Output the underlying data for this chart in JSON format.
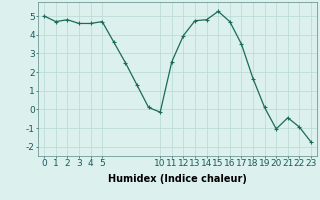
{
  "x": [
    0,
    1,
    2,
    3,
    4,
    5,
    6,
    7,
    8,
    9,
    10,
    11,
    12,
    13,
    14,
    15,
    16,
    17,
    18,
    19,
    20,
    21,
    22,
    23
  ],
  "y": [
    5.0,
    4.7,
    4.8,
    4.6,
    4.6,
    4.7,
    3.6,
    2.5,
    1.3,
    0.1,
    -0.15,
    2.55,
    3.95,
    4.75,
    4.8,
    5.25,
    4.7,
    3.5,
    1.65,
    0.1,
    -1.05,
    -0.45,
    -0.95,
    -1.75
  ],
  "line_color": "#1a6b5a",
  "marker": "+",
  "marker_size": 3,
  "marker_linewidth": 0.8,
  "linewidth": 0.9,
  "background_color": "#dcf0ee",
  "grid_color": "#b8d8d5",
  "xlabel": "Humidex (Indice chaleur)",
  "ylim": [
    -2.5,
    5.75
  ],
  "xlim": [
    -0.5,
    23.5
  ],
  "yticks": [
    -2,
    -1,
    0,
    1,
    2,
    3,
    4,
    5
  ],
  "xticks": [
    0,
    1,
    2,
    3,
    4,
    5,
    10,
    11,
    12,
    13,
    14,
    15,
    16,
    17,
    18,
    19,
    20,
    21,
    22,
    23
  ],
  "xlabel_fontsize": 7,
  "tick_fontsize": 6.5
}
